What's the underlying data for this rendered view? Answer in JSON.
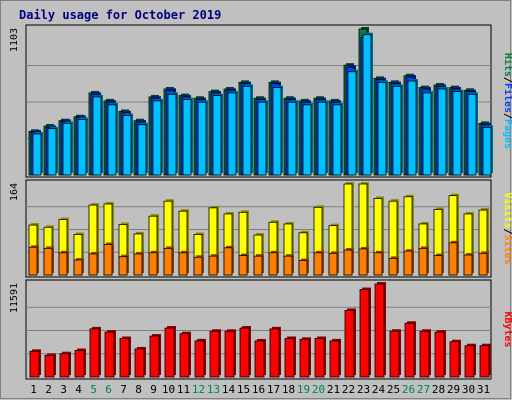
{
  "chart_data": {
    "type": "bar",
    "title": "Daily usage for October 2019",
    "days": [
      "1",
      "2",
      "3",
      "4",
      "5",
      "6",
      "7",
      "8",
      "9",
      "10",
      "11",
      "12",
      "13",
      "14",
      "15",
      "16",
      "17",
      "18",
      "19",
      "20",
      "21",
      "22",
      "23",
      "24",
      "25",
      "26",
      "27",
      "28",
      "29",
      "30",
      "31"
    ],
    "weekend_days": [
      "5",
      "6",
      "12",
      "13",
      "19",
      "20",
      "26",
      "27"
    ],
    "colors": {
      "background": "#c0c0c0",
      "border": "#000000",
      "grid": "#808080",
      "title": "#00007f",
      "hits": "#008040",
      "files": "#0040ff",
      "pages": "#00c0ff",
      "visits": "#ffff00",
      "sites": "#ff8000",
      "kbytes": "#ff0000",
      "weekday_label": "#000000",
      "weekend_label": "#00805c"
    },
    "panels": [
      {
        "id": "hits-files-pages",
        "max_label": "1103",
        "ylim": [
          0,
          1103
        ],
        "label_parts": [
          {
            "text": "Hits",
            "color": "#008040"
          },
          {
            "text": "/",
            "color": "#000000"
          },
          {
            "text": "Files",
            "color": "#0040ff"
          },
          {
            "text": "/",
            "color": "#000000"
          },
          {
            "text": "Pages",
            "color": "#00c0ff"
          }
        ],
        "series": [
          {
            "name": "Hits",
            "color": "#008040",
            "values": [
              330,
              370,
              410,
              440,
              620,
              560,
              480,
              410,
              590,
              650,
              600,
              580,
              630,
              650,
              700,
              580,
              700,
              580,
              560,
              580,
              560,
              830,
              1103,
              730,
              700,
              750,
              660,
              680,
              660,
              640,
              390
            ]
          },
          {
            "name": "Files",
            "color": "#0040ff",
            "values": [
              325,
              360,
              405,
              435,
              610,
              550,
              470,
              400,
              580,
              640,
              590,
              570,
              620,
              640,
              690,
              570,
              690,
              570,
              550,
              570,
              550,
              815,
              1040,
              720,
              690,
              740,
              650,
              670,
              650,
              630,
              380
            ]
          },
          {
            "name": "Pages",
            "color": "#00c0ff",
            "values": [
              310,
              350,
              390,
              420,
              590,
              530,
              450,
              380,
              560,
              610,
              570,
              550,
              600,
              620,
              670,
              550,
              660,
              550,
              530,
              550,
              530,
              780,
              1060,
              700,
              670,
              710,
              620,
              650,
              630,
              610,
              360
            ]
          }
        ]
      },
      {
        "id": "visits-sites",
        "max_label": "164",
        "ylim": [
          0,
          164
        ],
        "label_parts": [
          {
            "text": "Visits",
            "color": "#ffff00"
          },
          {
            "text": "/",
            "color": "#000000"
          },
          {
            "text": "Sites",
            "color": "#ff8000"
          }
        ],
        "series": [
          {
            "name": "Visits",
            "color": "#ffff00",
            "values": [
              90,
              86,
              100,
              73,
              126,
              128,
              91,
              74,
              106,
              133,
              115,
              73,
              121,
              110,
              113,
              72,
              95,
              92,
              76,
              122,
              89,
              164,
              164,
              138,
              133,
              141,
              92,
              118,
              143,
              110,
              117
            ]
          },
          {
            "name": "Sites",
            "color": "#ff8000",
            "values": [
              50,
              48,
              40,
              27,
              38,
              55,
              33,
              38,
              40,
              48,
              40,
              32,
              34,
              49,
              35,
              34,
              40,
              34,
              26,
              40,
              39,
              45,
              47,
              40,
              30,
              43,
              48,
              35,
              58,
              36,
              39
            ]
          }
        ]
      },
      {
        "id": "kbytes",
        "max_label": "11591",
        "ylim": [
          0,
          11591
        ],
        "label_parts": [
          {
            "text": "KBytes",
            "color": "#ff0000"
          }
        ],
        "series": [
          {
            "name": "KBytes",
            "color": "#ff0000",
            "values": [
              3200,
              2700,
              2900,
              3300,
              6000,
              5600,
              4800,
              3500,
              5100,
              6100,
              5400,
              4500,
              5700,
              5700,
              6100,
              4500,
              6000,
              4800,
              4700,
              4800,
              4500,
              8300,
              10900,
              11591,
              5700,
              6700,
              5700,
              5600,
              4400,
              3900,
              3900
            ]
          }
        ]
      }
    ]
  }
}
